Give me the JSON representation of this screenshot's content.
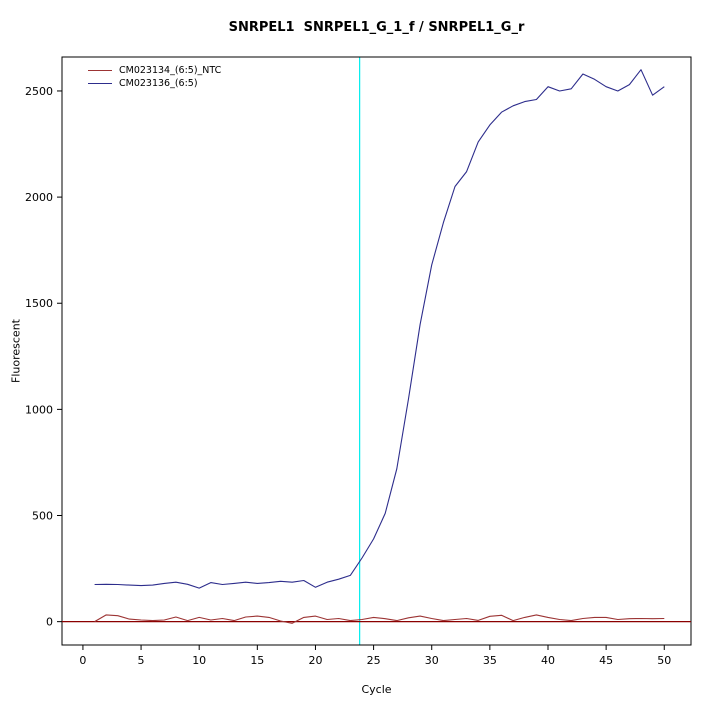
{
  "chart_data": {
    "type": "line",
    "title": "SNRPEL1  SNRPEL1_G_1_f / SNRPEL1_G_r",
    "xlabel": "Cycle",
    "ylabel": "Fluorescent",
    "xlim": [
      -1.8,
      52.3
    ],
    "ylim": [
      -110,
      2660
    ],
    "x_ticks": [
      0,
      5,
      10,
      15,
      20,
      25,
      30,
      35,
      40,
      45,
      50
    ],
    "y_ticks": [
      0,
      500,
      1000,
      1500,
      2000,
      2500
    ],
    "grid": false,
    "legend_position": "top-left",
    "x": [
      1,
      2,
      3,
      4,
      5,
      6,
      7,
      8,
      9,
      10,
      11,
      12,
      13,
      14,
      15,
      16,
      17,
      18,
      19,
      20,
      21,
      22,
      23,
      24,
      25,
      26,
      27,
      28,
      29,
      30,
      31,
      32,
      33,
      34,
      35,
      36,
      37,
      38,
      39,
      40,
      41,
      42,
      43,
      44,
      45,
      46,
      47,
      48,
      49,
      50
    ],
    "series": [
      {
        "name": "CM023134_(6:5)_NTC",
        "color": "#9c3434",
        "values": [
          0,
          32,
          28,
          12,
          8,
          5,
          8,
          22,
          5,
          20,
          8,
          15,
          5,
          22,
          26,
          20,
          3,
          -8,
          20,
          26,
          10,
          15,
          5,
          10,
          20,
          14,
          5,
          18,
          26,
          15,
          5,
          10,
          15,
          6,
          25,
          30,
          5,
          20,
          32,
          20,
          10,
          5,
          15,
          20,
          20,
          10,
          14,
          15,
          14,
          15
        ]
      },
      {
        "name": "CM023136_(6:5)",
        "color": "#2d2d8c",
        "values": [
          175,
          176,
          175,
          172,
          170,
          172,
          180,
          186,
          176,
          158,
          184,
          175,
          180,
          186,
          180,
          184,
          190,
          186,
          194,
          162,
          186,
          200,
          218,
          300,
          390,
          510,
          720,
          1050,
          1400,
          1680,
          1880,
          2050,
          2120,
          2260,
          2340,
          2400,
          2430,
          2450,
          2460,
          2520,
          2500,
          2510,
          2580,
          2555,
          2520,
          2500,
          2530,
          2600,
          2480,
          2520
        ]
      }
    ],
    "threshold_line": {
      "y": 0,
      "color": "#8b0000"
    },
    "ct_line": {
      "x": 23.8,
      "color": "#00eeee"
    }
  }
}
